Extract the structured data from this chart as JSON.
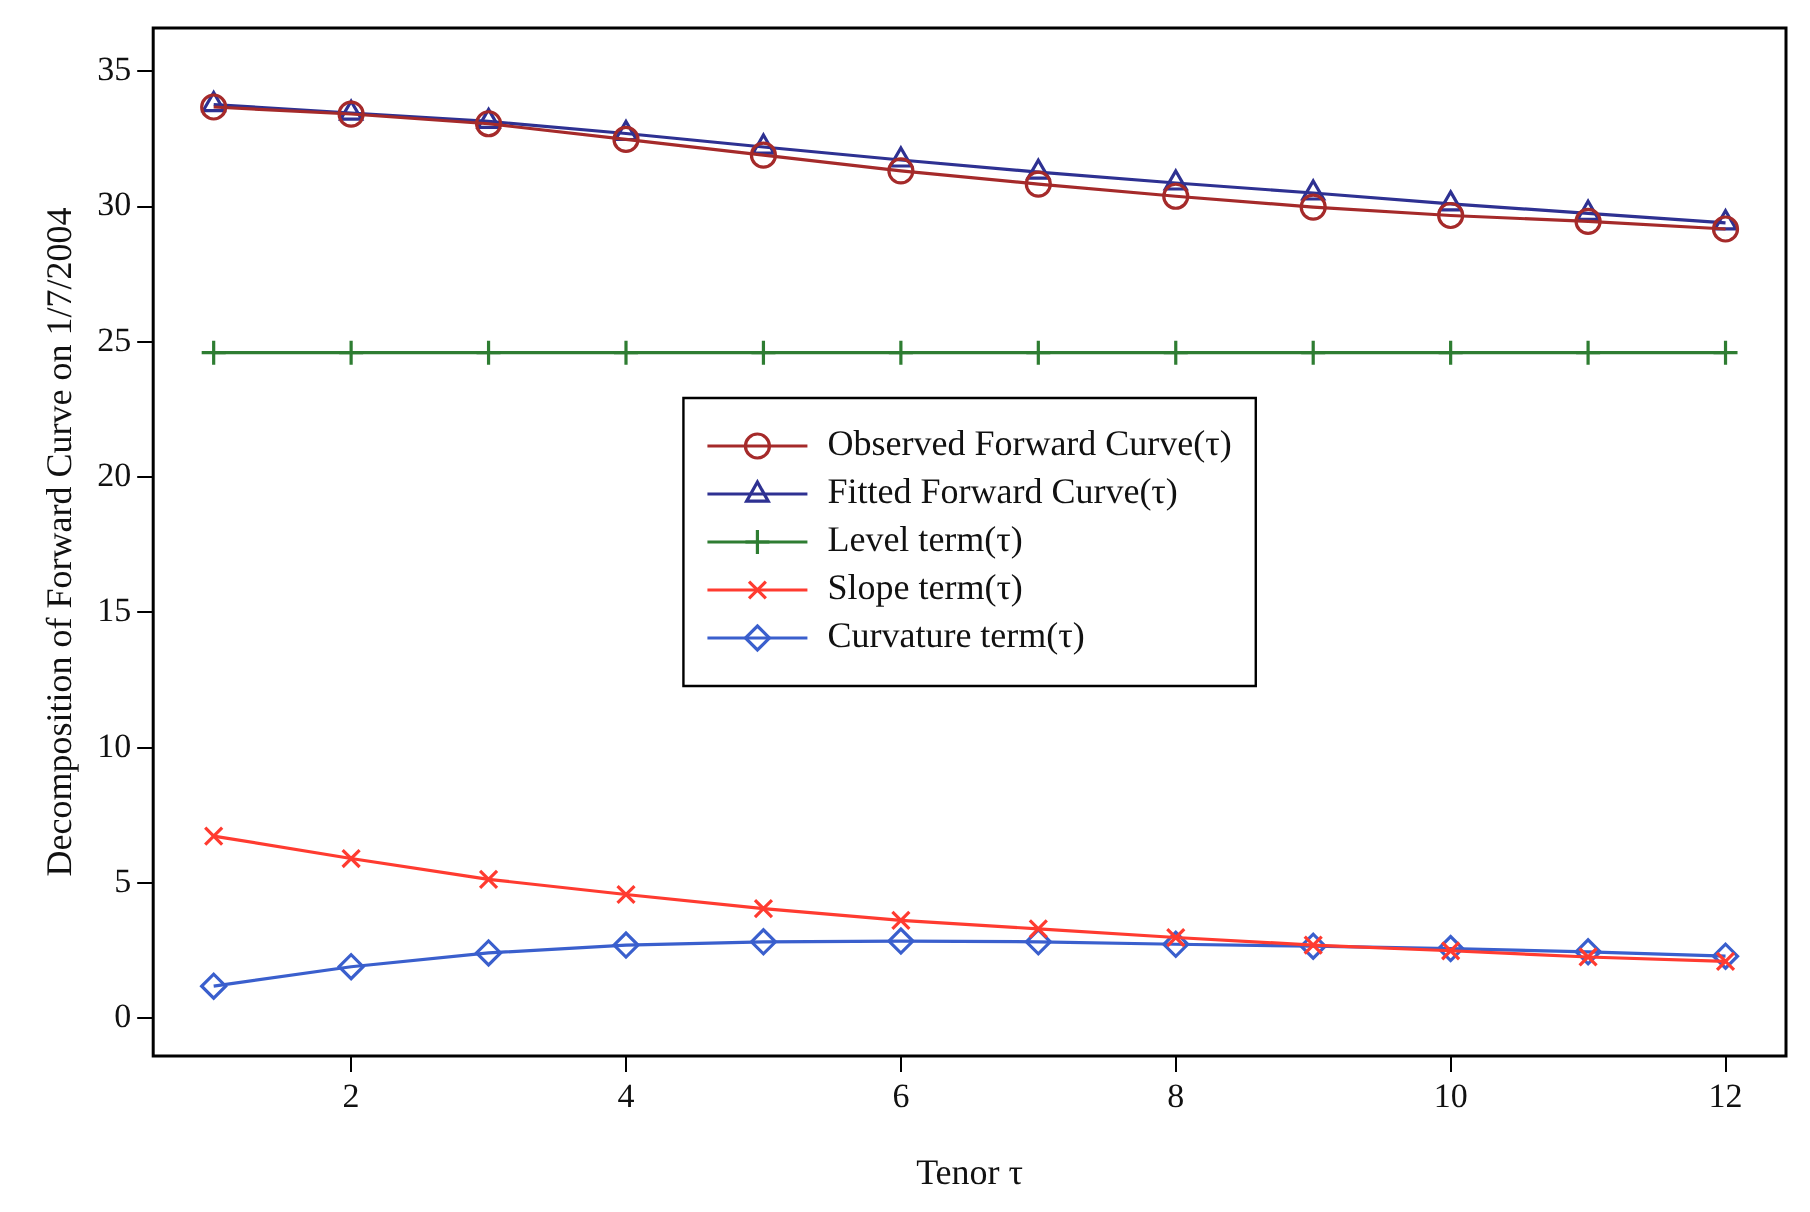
{
  "chart_data": {
    "type": "line",
    "xlabel": "Tenor τ",
    "ylabel": "Decomposition of Forward Curve on 1/7/2004",
    "x": [
      1,
      2,
      3,
      4,
      5,
      6,
      7,
      8,
      9,
      10,
      11,
      12
    ],
    "series": [
      {
        "name": "Observed Forward Curve(τ)",
        "color": "#a52a2a",
        "marker": "circle",
        "values": [
          33.68,
          33.42,
          33.06,
          32.48,
          31.9,
          31.32,
          30.83,
          30.38,
          29.98,
          29.67,
          29.45,
          29.17
        ]
      },
      {
        "name": "Fitted Forward Curve(τ)",
        "color": "#2e3192",
        "marker": "triangle",
        "values": [
          33.77,
          33.45,
          33.15,
          32.7,
          32.2,
          31.72,
          31.27,
          30.87,
          30.5,
          30.1,
          29.75,
          29.4
        ]
      },
      {
        "name": "Level term(τ)",
        "color": "#2e7d32",
        "marker": "plus",
        "values": [
          24.6,
          24.6,
          24.6,
          24.6,
          24.6,
          24.6,
          24.6,
          24.6,
          24.6,
          24.6,
          24.6,
          24.6
        ]
      },
      {
        "name": "Slope term(τ)",
        "color": "#ff3b30",
        "marker": "cross",
        "values": [
          6.73,
          5.9,
          5.13,
          4.57,
          4.05,
          3.61,
          3.3,
          2.98,
          2.7,
          2.49,
          2.26,
          2.1
        ]
      },
      {
        "name": "Curvature term(τ)",
        "color": "#3a5fcd",
        "marker": "diamond",
        "values": [
          1.18,
          1.9,
          2.41,
          2.7,
          2.82,
          2.85,
          2.82,
          2.73,
          2.66,
          2.57,
          2.45,
          2.29
        ]
      }
    ],
    "xlim": [
      0.56,
      12.44
    ],
    "xticks": [
      2,
      4,
      6,
      8,
      10,
      12
    ],
    "ylim": [
      -1.4,
      36.6
    ],
    "yticks": [
      0,
      5,
      10,
      15,
      20,
      25,
      30,
      35
    ],
    "grid": false,
    "legend": "center",
    "line_style": "solid"
  }
}
